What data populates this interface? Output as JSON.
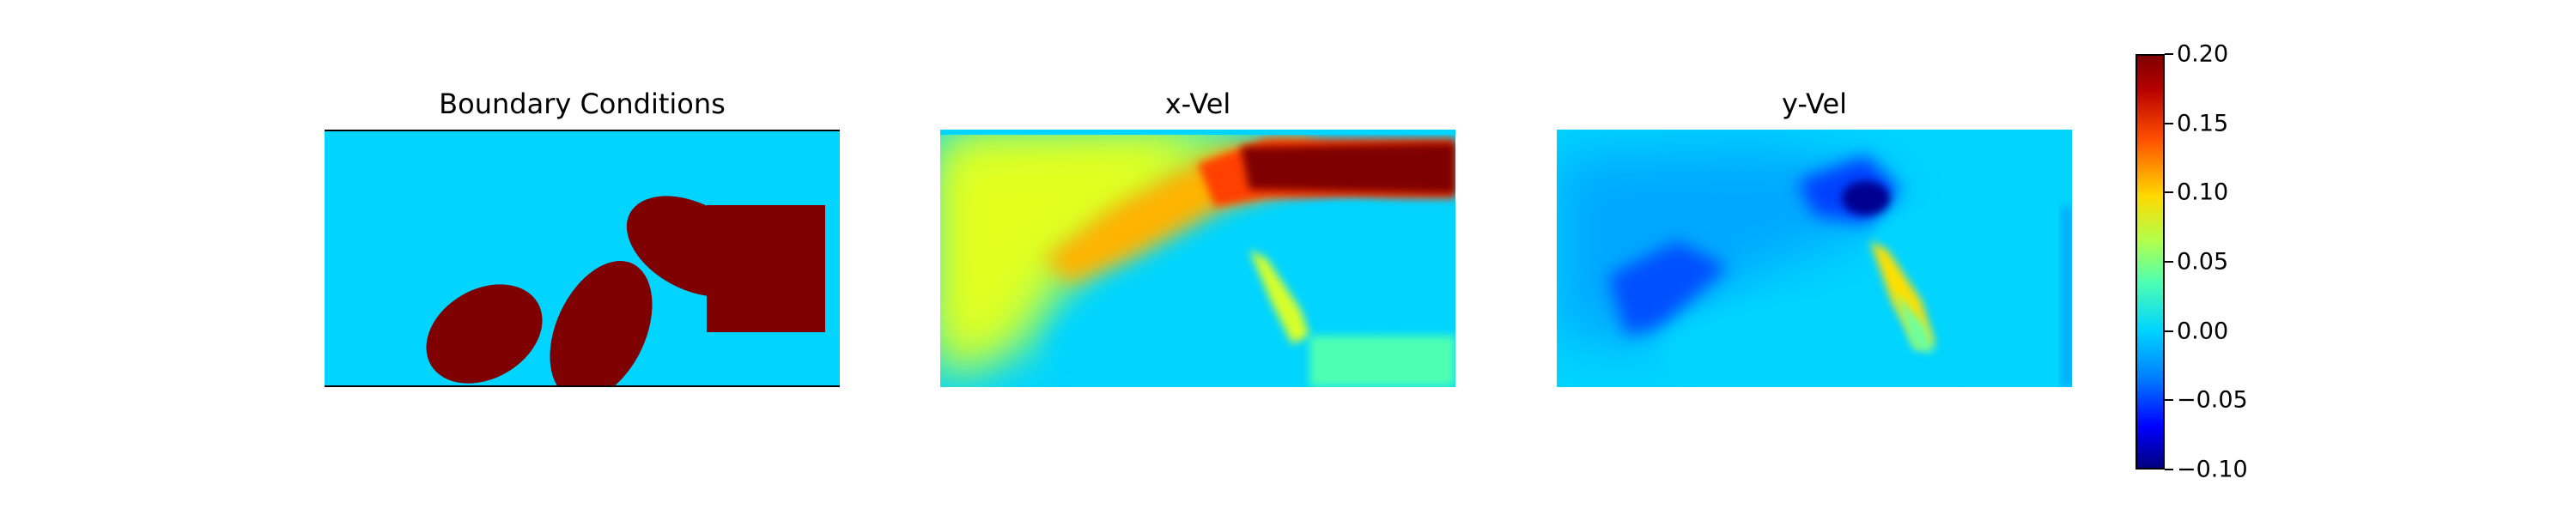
{
  "panels": {
    "boundary": {
      "title": "Boundary Conditions"
    },
    "xvel": {
      "title": "x-Vel"
    },
    "yvel": {
      "title": "y-Vel"
    }
  },
  "colors": {
    "fluid": "#00d4ff",
    "solid": "#7f0000",
    "colormap": "jet"
  },
  "chart_data": {
    "type": "heatmap",
    "panels": [
      "Boundary Conditions",
      "x-Vel",
      "y-Vel"
    ],
    "colorbar": {
      "range": [
        -0.1,
        0.2
      ],
      "ticks": [
        "0.20",
        "0.15",
        "0.10",
        "0.05",
        "0.00",
        "−0.05",
        "−0.10"
      ],
      "tick_values": [
        0.2,
        0.15,
        0.1,
        0.05,
        0.0,
        -0.05,
        -0.1
      ]
    }
  }
}
